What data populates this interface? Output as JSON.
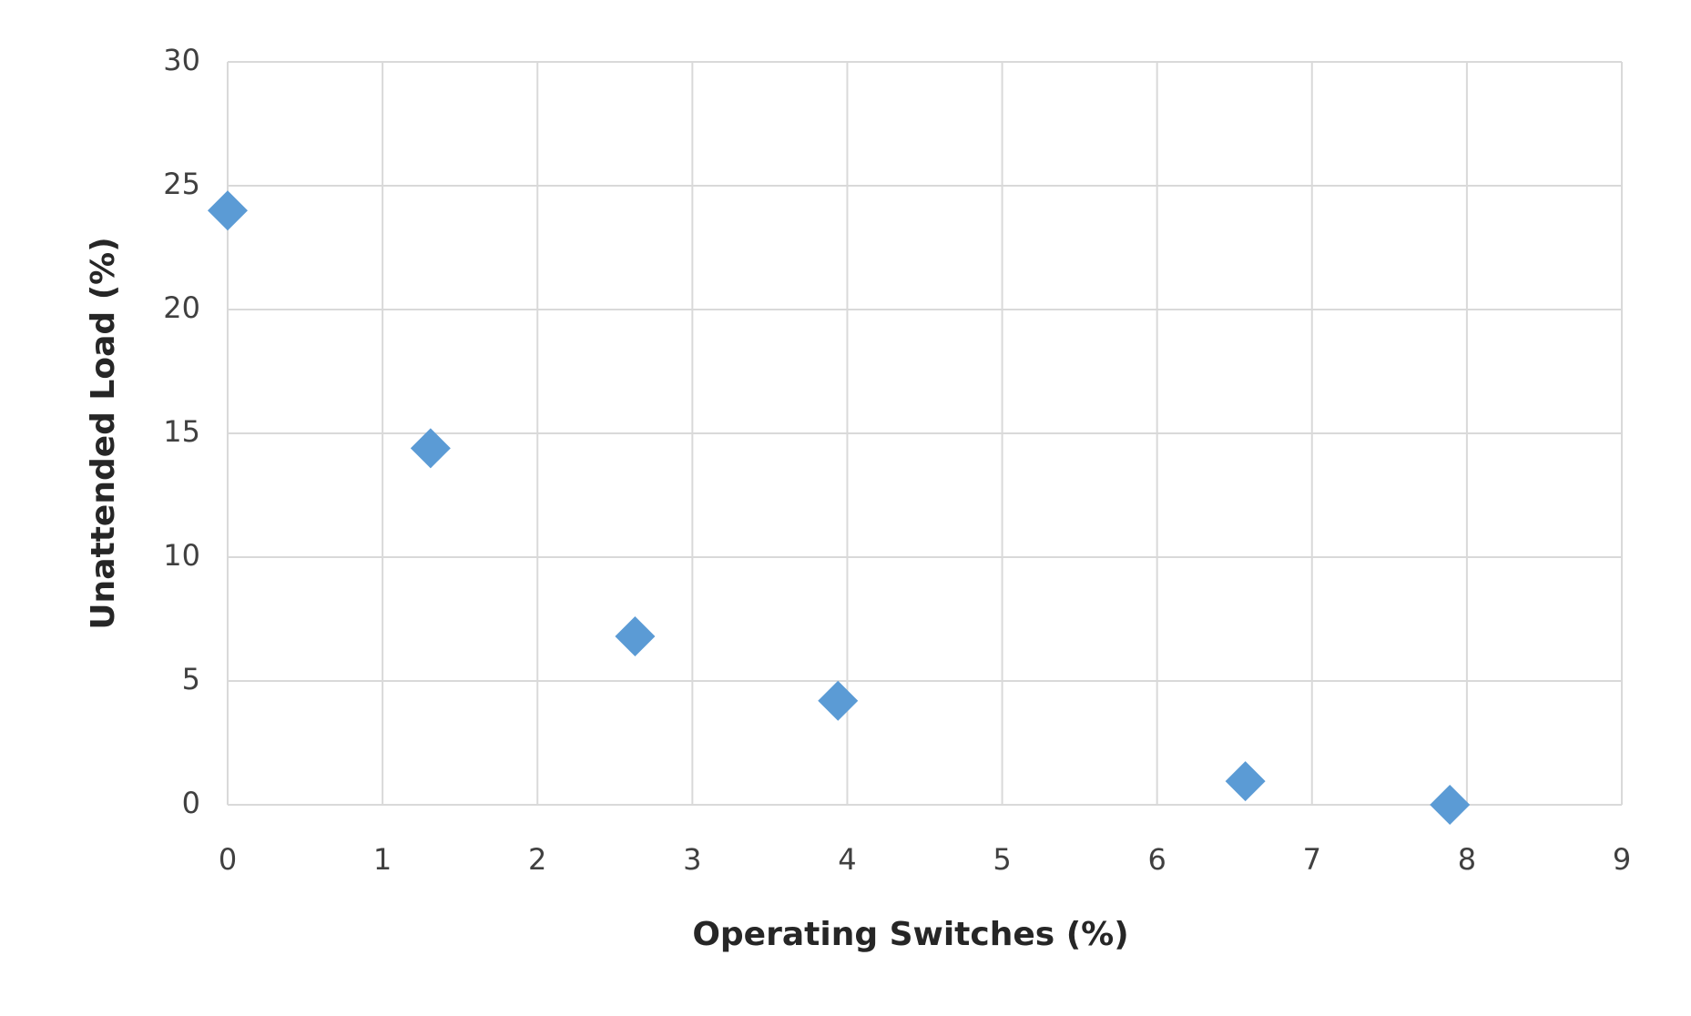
{
  "chart_data": {
    "type": "scatter",
    "x_label": "Operating Switches (%)",
    "y_label": "Unattended Load (%)",
    "series": [
      {
        "color": "#5b9bd5",
        "marker": "diamond",
        "x": [
          0,
          1.31,
          2.63,
          3.94,
          6.57,
          7.89
        ],
        "values": [
          24,
          14.4,
          6.8,
          4.2,
          0.95,
          0
        ]
      }
    ],
    "xlim": [
      0,
      9
    ],
    "xticks": [
      0,
      1,
      2,
      3,
      4,
      5,
      6,
      7,
      8,
      9
    ],
    "ylim": [
      0,
      30
    ],
    "yticks": [
      0,
      5,
      10,
      15,
      20,
      25,
      30
    ],
    "grid": true
  }
}
